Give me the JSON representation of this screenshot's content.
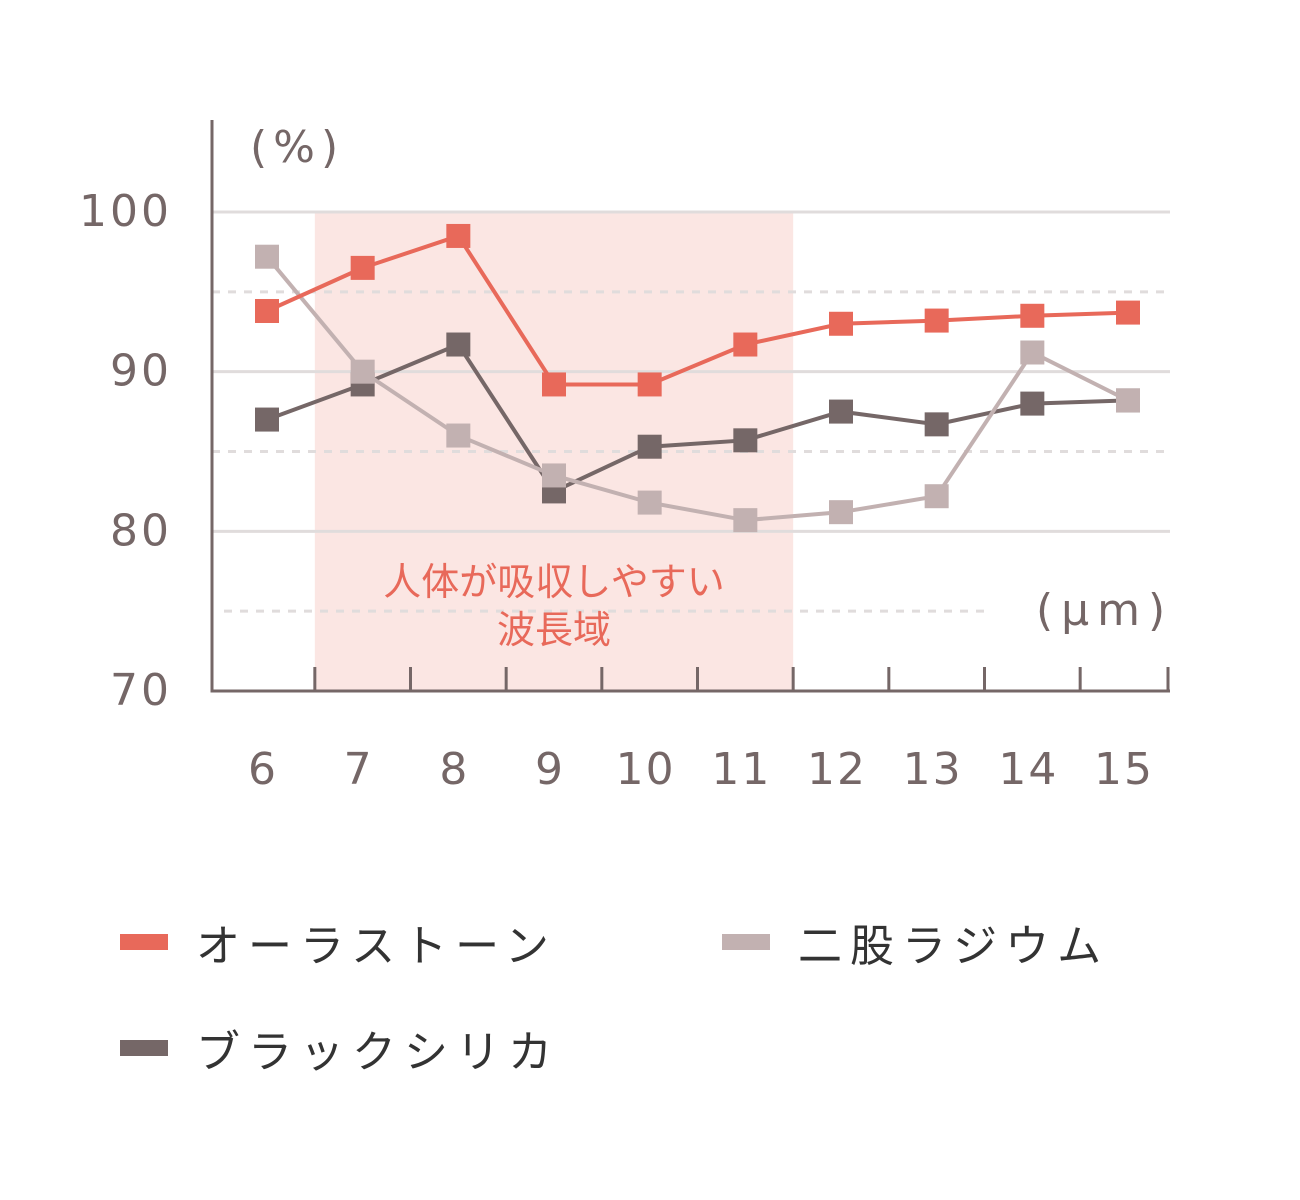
{
  "chart_data": {
    "type": "line",
    "title": "",
    "xlabel": "(μm)",
    "ylabel": "(%)",
    "x": [
      6,
      7,
      8,
      9,
      10,
      11,
      12,
      13,
      14,
      15
    ],
    "categories": [
      "6",
      "7",
      "8",
      "9",
      "10",
      "11",
      "12",
      "13",
      "14",
      "15"
    ],
    "ylim": [
      70,
      100
    ],
    "yticks": [
      "100",
      "90",
      "80",
      "70"
    ],
    "grid": {
      "solid": [
        100,
        90,
        80
      ],
      "dashed": [
        95,
        85,
        75
      ]
    },
    "series": [
      {
        "name": "オーラストーン",
        "color": "#e8695a",
        "values": [
          93.8,
          96.5,
          98.5,
          89.2,
          89.2,
          91.7,
          93.0,
          93.2,
          93.5,
          93.7
        ]
      },
      {
        "name": "ブラックシリカ",
        "color": "#756767",
        "values": [
          87.0,
          89.2,
          91.7,
          82.5,
          85.3,
          85.7,
          87.5,
          86.7,
          88.0,
          88.2
        ]
      },
      {
        "name": "二股ラジウム",
        "color": "#c2b1b1",
        "values": [
          97.2,
          90.0,
          86.0,
          83.5,
          81.8,
          80.7,
          81.2,
          82.2,
          91.2,
          88.2
        ]
      }
    ],
    "annotations": [
      {
        "type": "band",
        "x_from": 6.5,
        "x_to": 11.5,
        "color": "#fbe6e3",
        "label_lines": [
          "人体が吸収しやすい",
          "波長域"
        ],
        "label_color": "#e8695a"
      }
    ],
    "legend_position": "bottom"
  },
  "legend": {
    "items": [
      {
        "label": "オーラストーン",
        "color": "#e8695a"
      },
      {
        "label": "二股ラジウム",
        "color": "#c2b1b1"
      },
      {
        "label": "ブラックシリカ",
        "color": "#756767"
      }
    ]
  }
}
